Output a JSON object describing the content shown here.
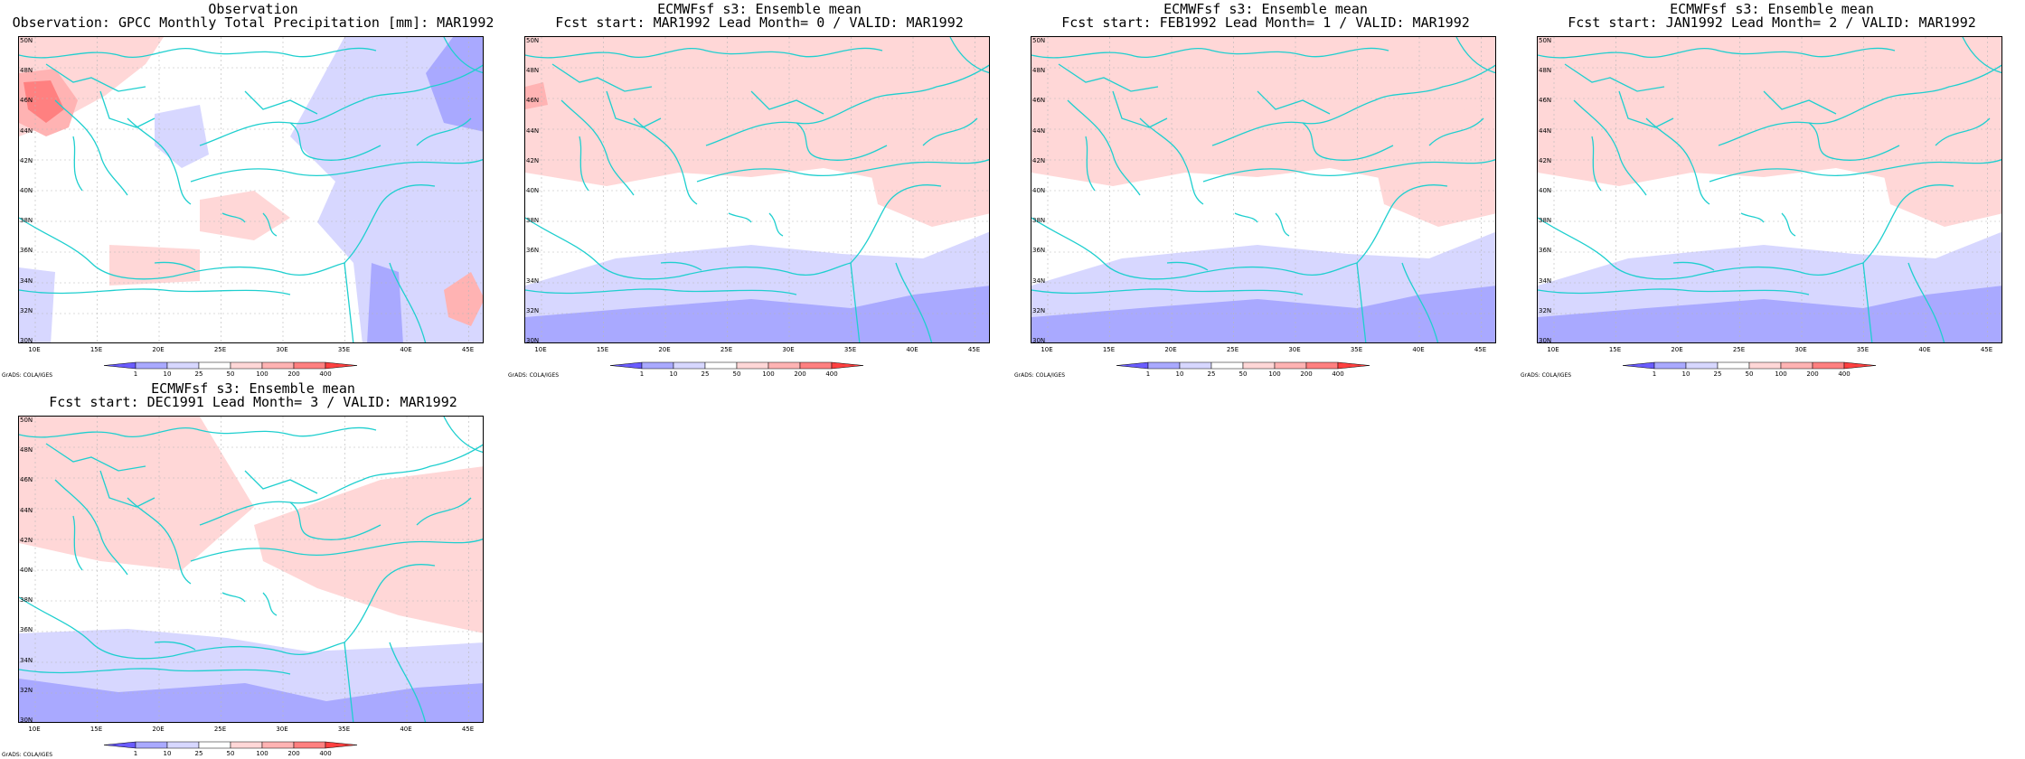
{
  "colors": {
    "coast": "#1fcfcf",
    "grid": "#b8b8b8",
    "levels": [
      "#6a5cff",
      "#a9a9ff",
      "#d7d7ff",
      "#ffffff",
      "#ffd7d7",
      "#ffb3b3",
      "#ff8080",
      "#ff4040"
    ]
  },
  "axes": {
    "lat_labels": [
      "50N",
      "48N",
      "46N",
      "44N",
      "42N",
      "40N",
      "38N",
      "36N",
      "34N",
      "32N",
      "30N"
    ],
    "lon_labels": [
      "10E",
      "15E",
      "20E",
      "25E",
      "30E",
      "35E",
      "40E",
      "45E"
    ]
  },
  "legend": {
    "ticks": [
      "1",
      "10",
      "25",
      "50",
      "100",
      "200",
      "400"
    ]
  },
  "credit": "GrADS: COLA/IGES",
  "panels": [
    {
      "title1": "Observation",
      "title2": "Observation: GPCC Monthly Total Precipitation [mm]: MAR1992",
      "pattern": "obs"
    },
    {
      "title1": "ECMWFsf s3: Ensemble mean",
      "title2": "Fcst start: MAR1992  Lead Month= 0 / VALID: MAR1992",
      "pattern": "f0"
    },
    {
      "title1": "ECMWFsf s3: Ensemble mean",
      "title2": "Fcst start: FEB1992  Lead Month= 1 / VALID: MAR1992",
      "pattern": "f1"
    },
    {
      "title1": "ECMWFsf s3: Ensemble mean",
      "title2": "Fcst start: JAN1992  Lead Month= 2 / VALID: MAR1992",
      "pattern": "f2"
    },
    {
      "title1": "ECMWFsf s3: Ensemble mean",
      "title2": "Fcst start: DEC1991  Lead Month= 3 / VALID: MAR1992",
      "pattern": "f3"
    }
  ]
}
